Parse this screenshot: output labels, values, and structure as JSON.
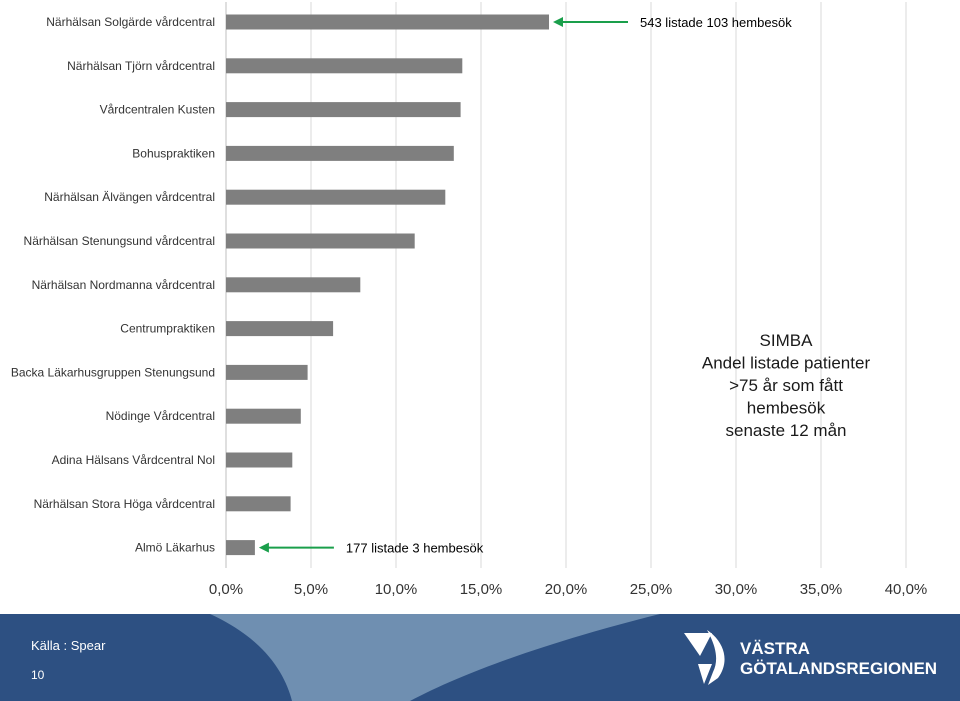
{
  "chart_data": {
    "type": "bar",
    "orientation": "horizontal",
    "categories": [
      "Närhälsan Solgärde vårdcentral",
      "Närhälsan Tjörn vårdcentral",
      "Vårdcentralen Kusten",
      "Bohuspraktiken",
      "Närhälsan Älvängen vårdcentral",
      "Närhälsan Stenungsund vårdcentral",
      "Närhälsan Nordmanna vårdcentral",
      "Centrumpraktiken",
      "Backa Läkarhusgruppen Stenungsund",
      "Nödinge Vårdcentral",
      "Adina Hälsans Vårdcentral Nol",
      "Närhälsan Stora Höga vårdcentral",
      "Almö Läkarhus"
    ],
    "values": [
      19.0,
      13.9,
      13.8,
      13.4,
      12.9,
      11.1,
      7.9,
      6.3,
      4.8,
      4.4,
      3.9,
      3.8,
      1.7
    ],
    "xlim": [
      0,
      40
    ],
    "xticks": [
      0,
      5,
      10,
      15,
      20,
      25,
      30,
      35,
      40
    ],
    "xtick_labels": [
      "0,0%",
      "5,0%",
      "10,0%",
      "15,0%",
      "20,0%",
      "25,0%",
      "30,0%",
      "35,0%",
      "40,0%"
    ],
    "grid": true,
    "bar_color": "#7f7f7f",
    "annotations": [
      {
        "category_index": 0,
        "text": "543 listade 103 hembesök",
        "arrow_color": "#1a9f4b"
      },
      {
        "category_index": 12,
        "text": "177 listade 3 hembesök",
        "arrow_color": "#1a9f4b"
      }
    ],
    "text_box": [
      "SIMBA",
      "Andel listade patienter",
      ">75 år som fått",
      "hembesök",
      "senaste 12 mån"
    ]
  },
  "footer": {
    "source": "Källa : Spear",
    "page_number": "10",
    "logo_text_line1": "VÄSTRA",
    "logo_text_line2": "GÖTALANDSREGIONEN",
    "colors": {
      "dark_blue": "#2d5082",
      "light_blue": "#6f8fb1"
    }
  }
}
